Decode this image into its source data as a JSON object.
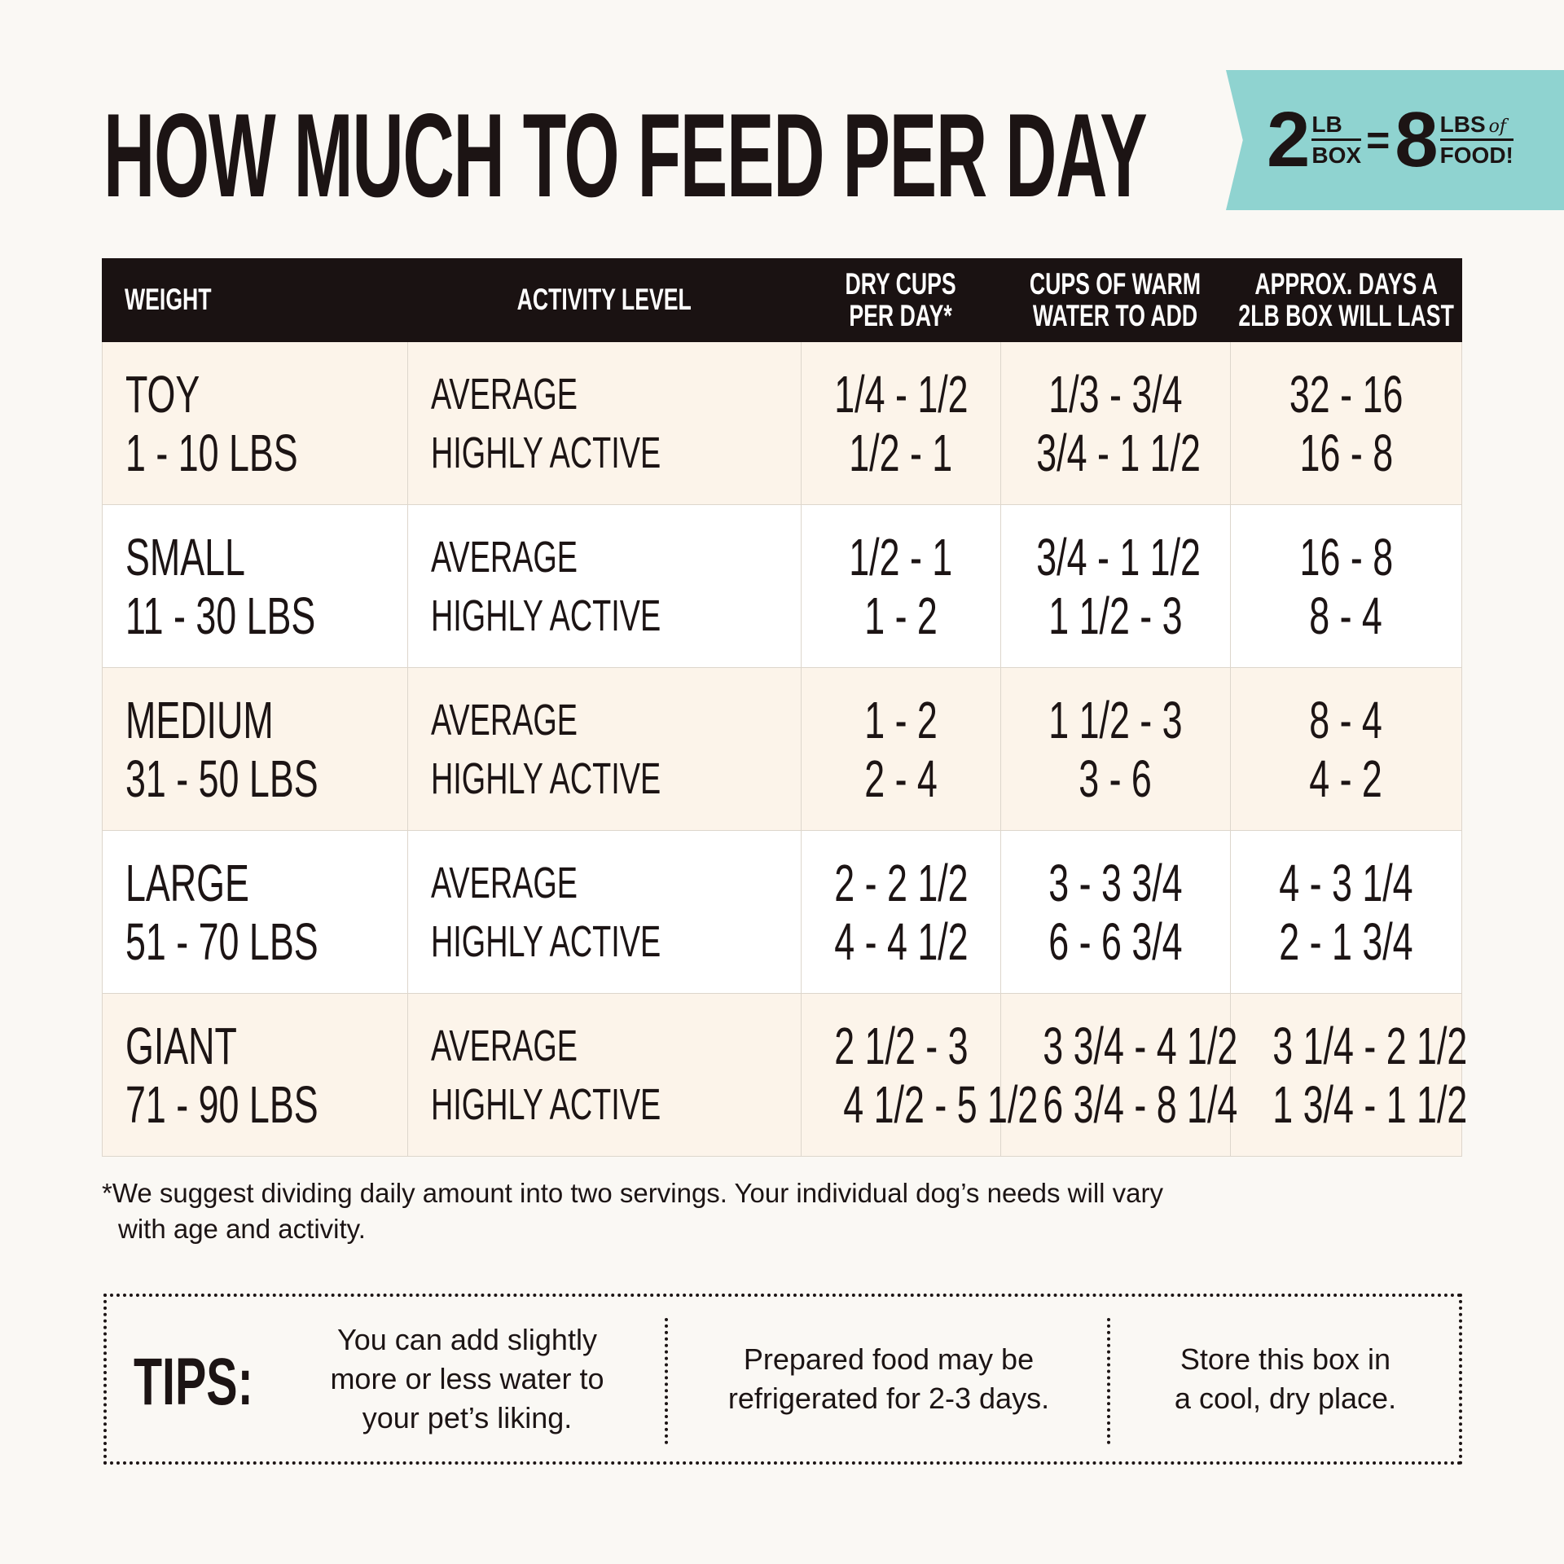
{
  "title": "HOW MUCH TO FEED PER DAY",
  "badge": {
    "box_num": "2",
    "box_top": "LB",
    "box_bottom": "BOX",
    "equals": "=",
    "food_num": "8",
    "food_top": "LBS",
    "food_of": "of",
    "food_bottom": "FOOD!",
    "color": "#8fd3d0"
  },
  "table": {
    "headers": [
      "WEIGHT",
      "ACTIVITY LEVEL",
      "DRY CUPS PER DAY*",
      "CUPS OF WARM WATER TO ADD",
      "APPROX. DAYS A 2LB BOX WILL LAST"
    ],
    "header_lines": [
      [
        "WEIGHT"
      ],
      [
        "ACTIVITY LEVEL"
      ],
      [
        "DRY CUPS",
        "PER DAY*"
      ],
      [
        "CUPS OF WARM",
        "WATER TO ADD"
      ],
      [
        "APPROX. DAYS A",
        "2LB BOX WILL LAST"
      ]
    ],
    "rows": [
      {
        "size": "TOY",
        "range": "1 - 10 LBS",
        "activity": [
          "AVERAGE",
          "HIGHLY ACTIVE"
        ],
        "dry": [
          "1/4 - 1/2",
          "1/2 - 1"
        ],
        "water": [
          "1/3 - 3/4",
          "3/4 - 1 1/2"
        ],
        "days": [
          "32 - 16",
          "16 - 8"
        ]
      },
      {
        "size": "SMALL",
        "range": "11 - 30 LBS",
        "activity": [
          "AVERAGE",
          "HIGHLY ACTIVE"
        ],
        "dry": [
          "1/2 - 1",
          "1 - 2"
        ],
        "water": [
          "3/4 - 1 1/2",
          "1 1/2 - 3"
        ],
        "days": [
          "16 - 8",
          "8 - 4"
        ]
      },
      {
        "size": "MEDIUM",
        "range": "31 - 50 LBS",
        "activity": [
          "AVERAGE",
          "HIGHLY ACTIVE"
        ],
        "dry": [
          "1 - 2",
          "2 - 4"
        ],
        "water": [
          "1 1/2 - 3",
          "3 - 6"
        ],
        "days": [
          "8 - 4",
          "4 - 2"
        ]
      },
      {
        "size": "LARGE",
        "range": "51 - 70 LBS",
        "activity": [
          "AVERAGE",
          "HIGHLY ACTIVE"
        ],
        "dry": [
          "2 - 2 1/2",
          "4 - 4 1/2"
        ],
        "water": [
          "3 - 3 3/4",
          "6 - 6 3/4"
        ],
        "days": [
          "4 - 3 1/4",
          "2 - 1 3/4"
        ]
      },
      {
        "size": "GIANT",
        "range": "71 - 90 LBS",
        "activity": [
          "AVERAGE",
          "HIGHLY ACTIVE"
        ],
        "dry": [
          "2 1/2 - 3",
          "4 1/2 - 5 1/2"
        ],
        "water": [
          "3 3/4 - 4 1/2",
          "6 3/4 - 8 1/4"
        ],
        "days": [
          "3 1/4 - 2 1/2",
          "1 3/4 - 1 1/2"
        ]
      }
    ]
  },
  "footnote": [
    "*We suggest dividing daily amount into two servings. Your individual dog’s needs will vary",
    "with age and activity."
  ],
  "tips": {
    "label": "TIPS:",
    "items": [
      [
        "You can add slightly",
        "more or less water to",
        "your pet’s liking."
      ],
      [
        "Prepared food may be",
        "refrigerated for 2-3 days."
      ],
      [
        "Store this box in",
        "a cool, dry place."
      ]
    ]
  }
}
